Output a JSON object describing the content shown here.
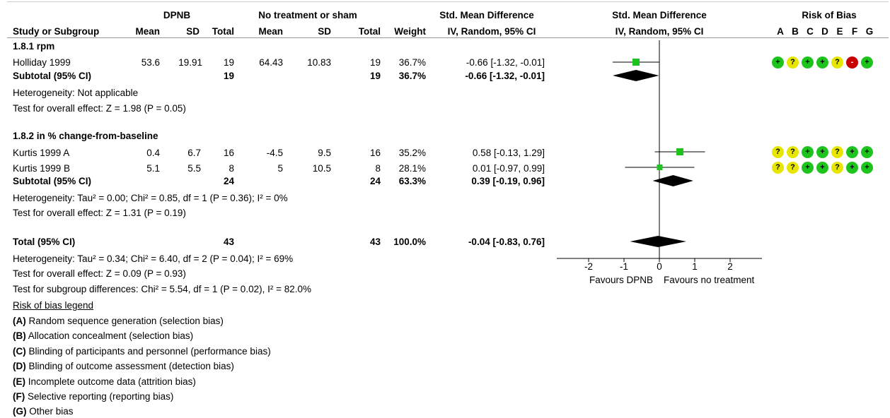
{
  "header": {
    "group1": "DPNB",
    "group2": "No treatment or sham",
    "smd_text": "Std. Mean Difference",
    "smd_graph": "Std. Mean Difference",
    "rob": "Risk of Bias",
    "study": "Study or Subgroup",
    "mean1": "Mean",
    "sd1": "SD",
    "total1": "Total",
    "mean2": "Mean",
    "sd2": "SD",
    "total2": "Total",
    "weight": "Weight",
    "ci_text": "IV, Random, 95% CI",
    "ci_graph": "IV, Random, 95% CI",
    "rob_letters": [
      "A",
      "B",
      "C",
      "D",
      "E",
      "F",
      "G"
    ]
  },
  "subgroups": [
    {
      "title": "1.8.1 rpm",
      "studies": [
        {
          "name": "Holliday 1999",
          "mean1": "53.6",
          "sd1": "19.91",
          "total1": "19",
          "mean2": "64.43",
          "sd2": "10.83",
          "total2": "19",
          "weight": "36.7%",
          "ci": "-0.66 [-1.32, -0.01]",
          "rob": [
            "+",
            "?",
            "+",
            "+",
            "?",
            "-",
            "+"
          ]
        }
      ],
      "subtotal": {
        "label": "Subtotal (95% CI)",
        "total1": "19",
        "total2": "19",
        "weight": "36.7%",
        "ci": "-0.66 [-1.32, -0.01]"
      },
      "heterogeneity": "Heterogeneity: Not applicable",
      "overall": "Test for overall effect: Z = 1.98 (P = 0.05)"
    },
    {
      "title": "1.8.2 in % change-from-baseline",
      "studies": [
        {
          "name": "Kurtis 1999 A",
          "mean1": "0.4",
          "sd1": "6.7",
          "total1": "16",
          "mean2": "-4.5",
          "sd2": "9.5",
          "total2": "16",
          "weight": "35.2%",
          "ci": "0.58 [-0.13, 1.29]",
          "rob": [
            "?",
            "?",
            "+",
            "+",
            "?",
            "+",
            "+"
          ]
        },
        {
          "name": "Kurtis 1999 B",
          "mean1": "5.1",
          "sd1": "5.5",
          "total1": "8",
          "mean2": "5",
          "sd2": "10.5",
          "total2": "8",
          "weight": "28.1%",
          "ci": "0.01 [-0.97, 0.99]",
          "rob": [
            "?",
            "?",
            "+",
            "+",
            "?",
            "+",
            "+"
          ]
        }
      ],
      "subtotal": {
        "label": "Subtotal (95% CI)",
        "total1": "24",
        "total2": "24",
        "weight": "63.3%",
        "ci": "0.39 [-0.19, 0.96]"
      },
      "heterogeneity": "Heterogeneity: Tau² = 0.00; Chi² = 0.85, df = 1 (P = 0.36); I² = 0%",
      "overall": "Test for overall effect: Z = 1.31 (P = 0.19)"
    }
  ],
  "total": {
    "label": "Total (95% CI)",
    "total1": "43",
    "total2": "43",
    "weight": "100.0%",
    "ci": "-0.04 [-0.83, 0.76]",
    "heterogeneity": "Heterogeneity: Tau² = 0.34; Chi² = 6.40, df = 2 (P = 0.04); I² = 69%",
    "overall": "Test for overall effect: Z = 0.09 (P = 0.93)",
    "subgroup_diff": "Test for subgroup differences: Chi² = 5.54, df = 1 (P = 0.02), I² = 82.0%"
  },
  "legend": {
    "title": "Risk of bias legend",
    "items": [
      {
        "key": "(A)",
        "text": " Random sequence generation (selection bias)"
      },
      {
        "key": "(B)",
        "text": " Allocation concealment (selection bias)"
      },
      {
        "key": "(C)",
        "text": " Blinding of participants and personnel (performance bias)"
      },
      {
        "key": "(D)",
        "text": " Blinding of outcome assessment (detection bias)"
      },
      {
        "key": "(E)",
        "text": " Incomplete outcome data (attrition bias)"
      },
      {
        "key": "(F)",
        "text": " Selective reporting (reporting bias)"
      },
      {
        "key": "(G)",
        "text": " Other bias"
      }
    ]
  },
  "colors": {
    "low": "#1ec31e",
    "unclear": "#e6e600",
    "high": "#c80000",
    "marker": "#1ec31e"
  },
  "chart_data": {
    "type": "scatter",
    "xlim": [
      -2,
      2
    ],
    "ticks": [
      "-2",
      "-1",
      "0",
      "1",
      "2"
    ],
    "favours_left": "Favours DPNB",
    "favours_right": "Favours no treatment",
    "studies": [
      {
        "name": "Holliday 1999",
        "est": -0.66,
        "lo": -1.32,
        "hi": -0.01,
        "weight": 36.7
      },
      {
        "name": "Kurtis 1999 A",
        "est": 0.58,
        "lo": -0.13,
        "hi": 1.29,
        "weight": 35.2
      },
      {
        "name": "Kurtis 1999 B",
        "est": 0.01,
        "lo": -0.97,
        "hi": 0.99,
        "weight": 28.1
      }
    ],
    "diamonds": [
      {
        "name": "Subtotal 1.8.1",
        "est": -0.66,
        "lo": -1.32,
        "hi": -0.01
      },
      {
        "name": "Subtotal 1.8.2",
        "est": 0.39,
        "lo": -0.19,
        "hi": 0.96
      },
      {
        "name": "Total",
        "est": -0.04,
        "lo": -0.83,
        "hi": 0.76
      }
    ]
  }
}
